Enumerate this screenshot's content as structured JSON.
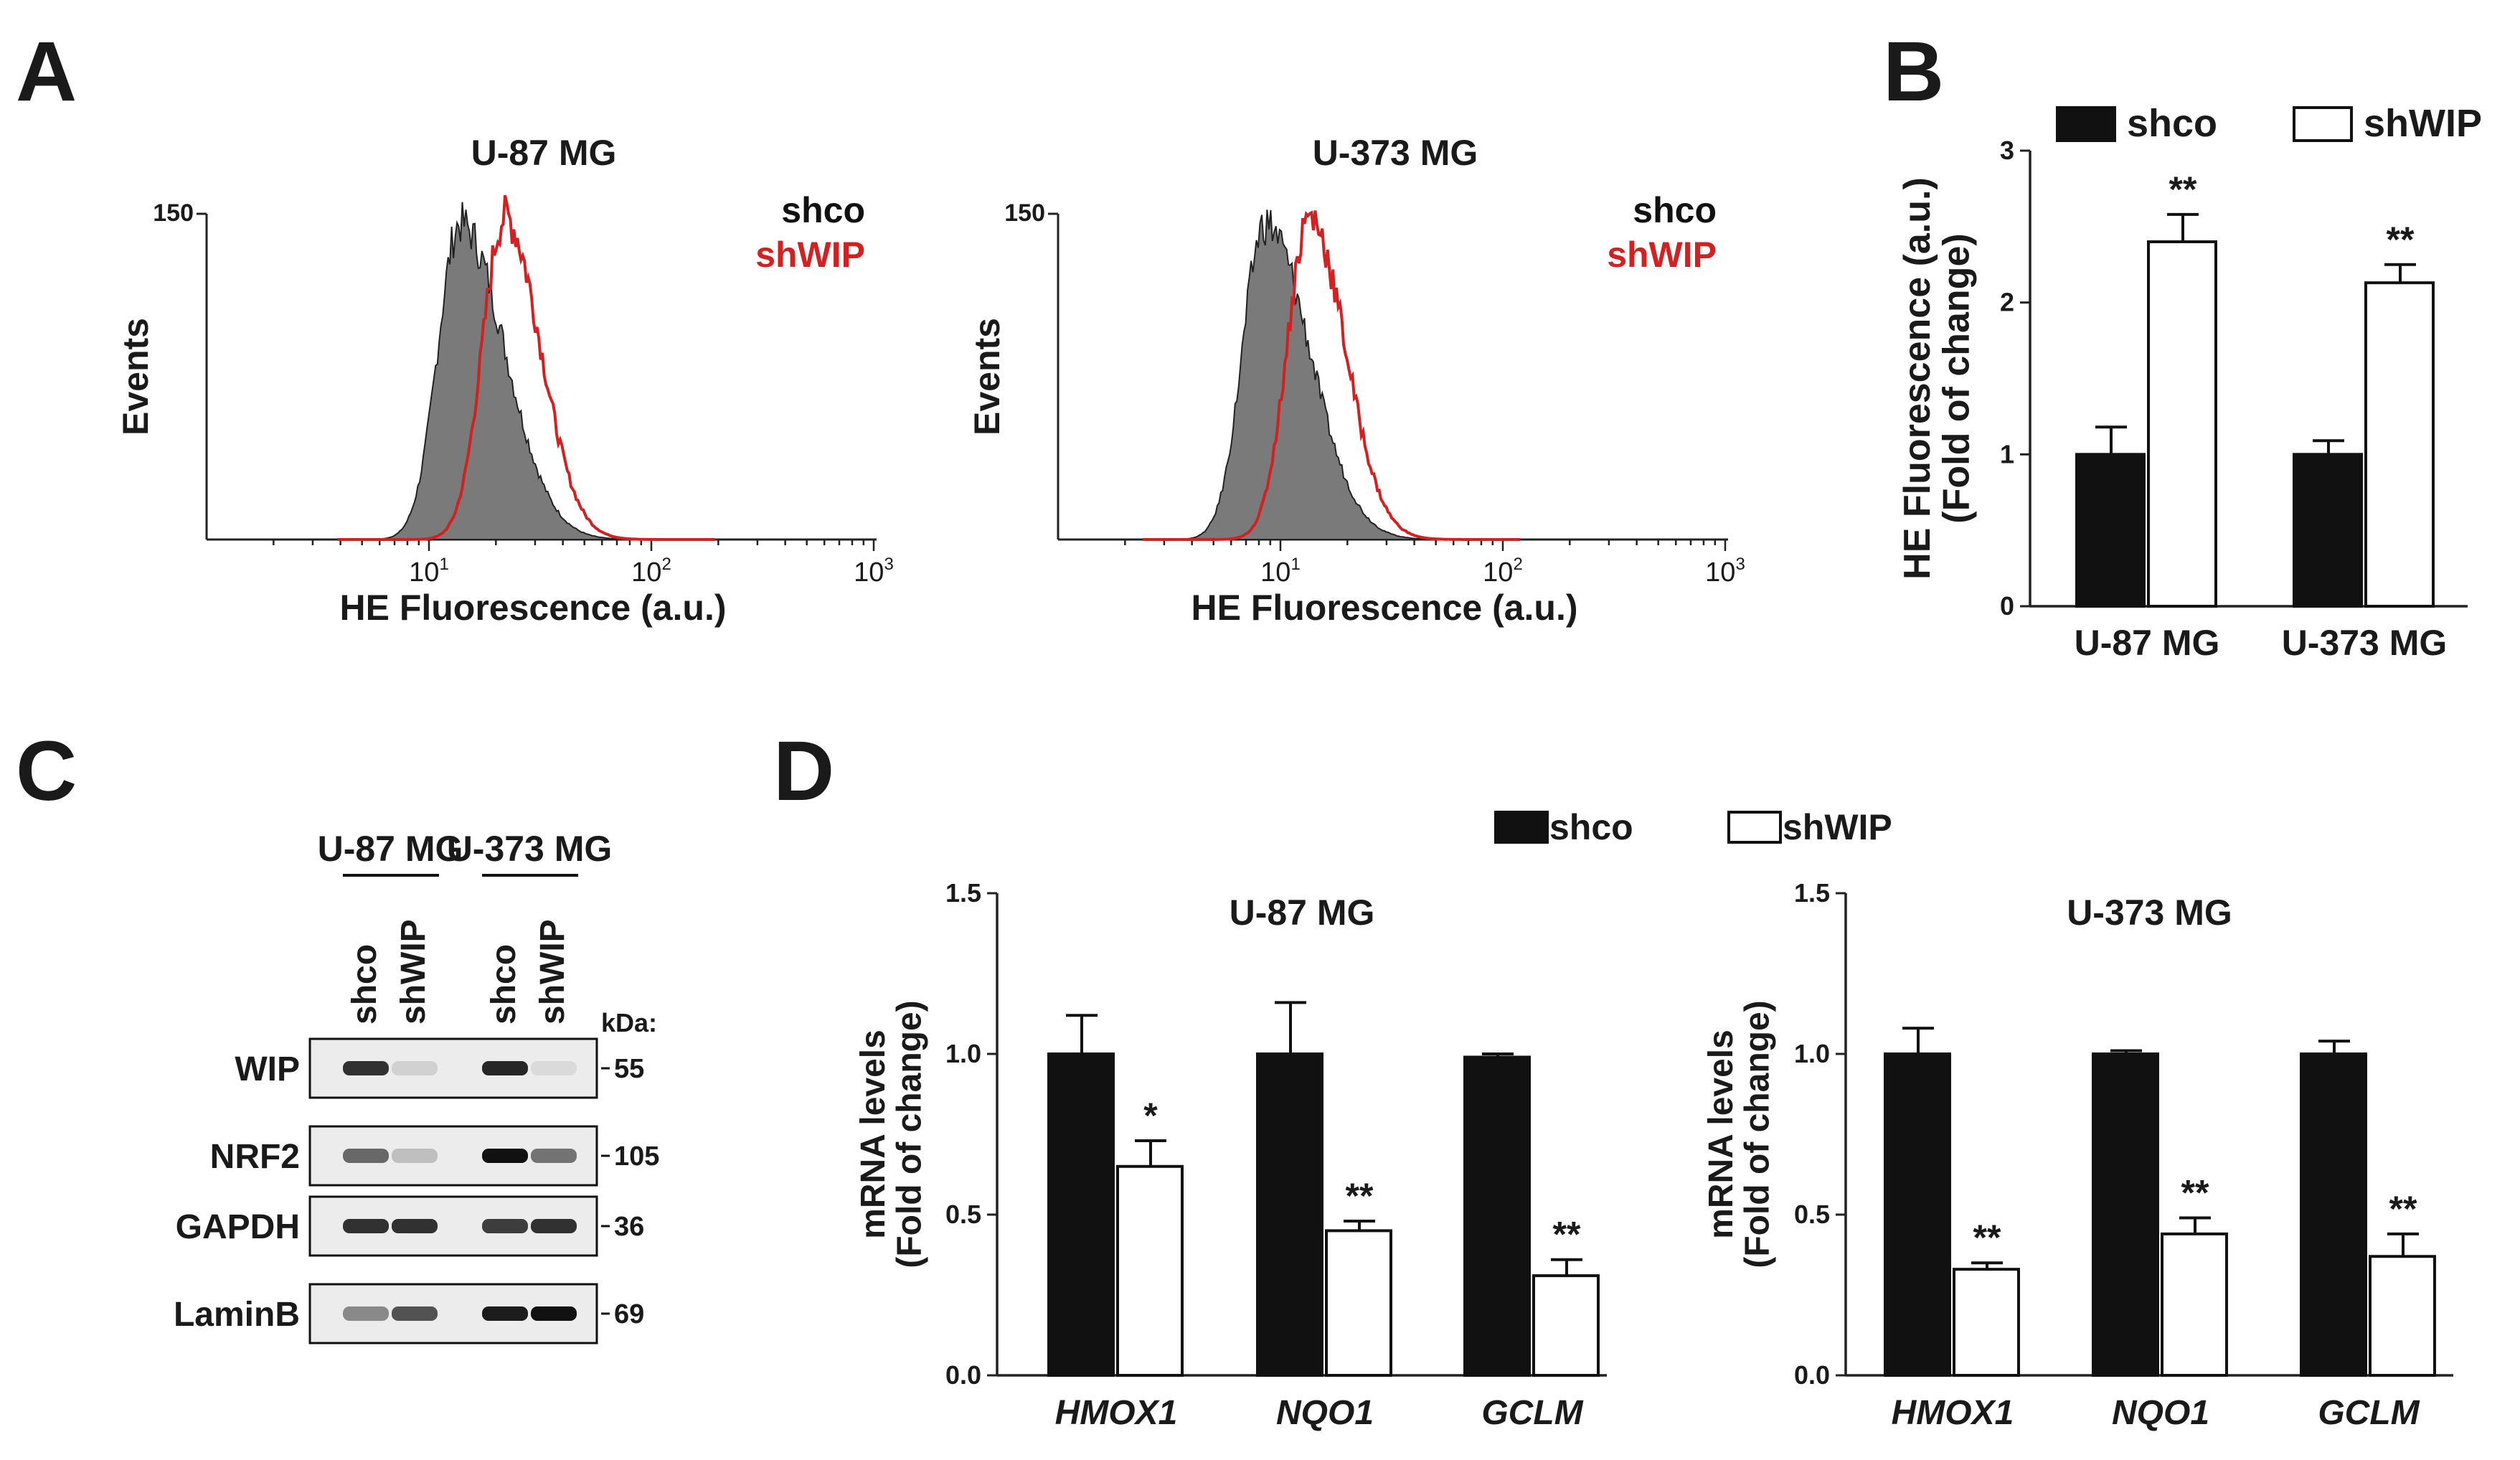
{
  "panels": {
    "a": "A",
    "b": "B",
    "c": "C",
    "d": "D"
  },
  "colors": {
    "black": "#111111",
    "red": "#d42020",
    "gray_fill": "#7a7a7a",
    "white": "#ffffff"
  },
  "histograms": [
    {
      "title": "U-87 MG",
      "ylabel": "Events",
      "ytick": "150",
      "xlabel": "HE Fluorescence (a.u.)",
      "xticks": [
        {
          "base": "10",
          "exp": "1"
        },
        {
          "base": "10",
          "exp": "2"
        },
        {
          "base": "10",
          "exp": "3"
        }
      ],
      "legend": [
        {
          "label": "shco",
          "color": "#111111"
        },
        {
          "label": "shWIP",
          "color": "#d42020"
        }
      ],
      "shco_peak_log": 1.14,
      "shwip_peak_log": 1.34
    },
    {
      "title": "U-373 MG",
      "ylabel": "Events",
      "ytick": "150",
      "xlabel": "HE Fluorescence (a.u.)",
      "xticks": [
        {
          "base": "10",
          "exp": "1"
        },
        {
          "base": "10",
          "exp": "2"
        },
        {
          "base": "10",
          "exp": "3"
        }
      ],
      "legend": [
        {
          "label": "shco",
          "color": "#111111"
        },
        {
          "label": "shWIP",
          "color": "#d42020"
        }
      ],
      "shco_peak_log": 0.93,
      "shwip_peak_log": 1.13
    }
  ],
  "chart_data": [
    {
      "type": "bar",
      "panel": "B",
      "title": "",
      "ylabel": "HE Fluorescence (a.u.)",
      "ylabel2": "(Fold of change)",
      "ylim": [
        0,
        3
      ],
      "yticks": [
        "0",
        "1",
        "2",
        "3"
      ],
      "categories": [
        "U-87 MG",
        "U-373 MG"
      ],
      "series": [
        {
          "name": "shco",
          "color": "#111111",
          "values": [
            1.0,
            1.0
          ],
          "errors": [
            0.18,
            0.09
          ],
          "annotations": [
            "",
            ""
          ]
        },
        {
          "name": "shWIP",
          "color": "#ffffff",
          "values": [
            2.4,
            2.13
          ],
          "errors": [
            0.18,
            0.12
          ],
          "annotations": [
            "**",
            "**"
          ]
        }
      ]
    },
    {
      "type": "bar",
      "panel": "D",
      "title": "U-87 MG",
      "ylabel": "mRNA levels",
      "ylabel2": "(Fold of change)",
      "ylim": [
        0,
        1.5
      ],
      "yticks": [
        "0.0",
        "0.5",
        "1.0",
        "1.5"
      ],
      "categories": [
        "HMOX1",
        "NQO1",
        "GCLM"
      ],
      "series": [
        {
          "name": "shco",
          "color": "#111111",
          "values": [
            1.0,
            1.0,
            0.99
          ],
          "errors": [
            0.12,
            0.16,
            0.01
          ],
          "annotations": [
            "",
            "",
            ""
          ]
        },
        {
          "name": "shWIP",
          "color": "#ffffff",
          "values": [
            0.65,
            0.45,
            0.31
          ],
          "errors": [
            0.08,
            0.03,
            0.05
          ],
          "annotations": [
            "*",
            "**",
            "**"
          ]
        }
      ]
    },
    {
      "type": "bar",
      "panel": "D",
      "title": "U-373 MG",
      "ylabel": "mRNA levels",
      "ylabel2": "(Fold of change)",
      "ylim": [
        0,
        1.5
      ],
      "yticks": [
        "0.0",
        "0.5",
        "1.0",
        "1.5"
      ],
      "categories": [
        "HMOX1",
        "NQO1",
        "GCLM"
      ],
      "series": [
        {
          "name": "shco",
          "color": "#111111",
          "values": [
            1.0,
            1.0,
            1.0
          ],
          "errors": [
            0.08,
            0.01,
            0.04
          ],
          "annotations": [
            "",
            "",
            ""
          ]
        },
        {
          "name": "shWIP",
          "color": "#ffffff",
          "values": [
            0.33,
            0.44,
            0.37
          ],
          "errors": [
            0.02,
            0.05,
            0.07
          ],
          "annotations": [
            "**",
            "**",
            "**"
          ]
        }
      ]
    }
  ],
  "d_legend": [
    {
      "label": "shco",
      "color": "#111111"
    },
    {
      "label": "shWIP",
      "color": "#ffffff"
    }
  ],
  "western": {
    "cell_lines": [
      "U-87 MG",
      "U-373 MG"
    ],
    "lanes": [
      "shco",
      "shWIP",
      "shco",
      "shWIP"
    ],
    "kda_label": "kDa:",
    "proteins": [
      {
        "name": "WIP",
        "kda": "55",
        "intensity": [
          0.85,
          0.12,
          0.9,
          0.08
        ]
      },
      {
        "name": "NRF2",
        "kda": "105",
        "intensity": [
          0.6,
          0.2,
          1.0,
          0.55
        ]
      },
      {
        "name": "GAPDH",
        "kda": "36",
        "intensity": [
          0.85,
          0.85,
          0.8,
          0.85
        ]
      },
      {
        "name": "LaminB",
        "kda": "69",
        "intensity": [
          0.45,
          0.7,
          0.95,
          1.0
        ]
      }
    ]
  }
}
